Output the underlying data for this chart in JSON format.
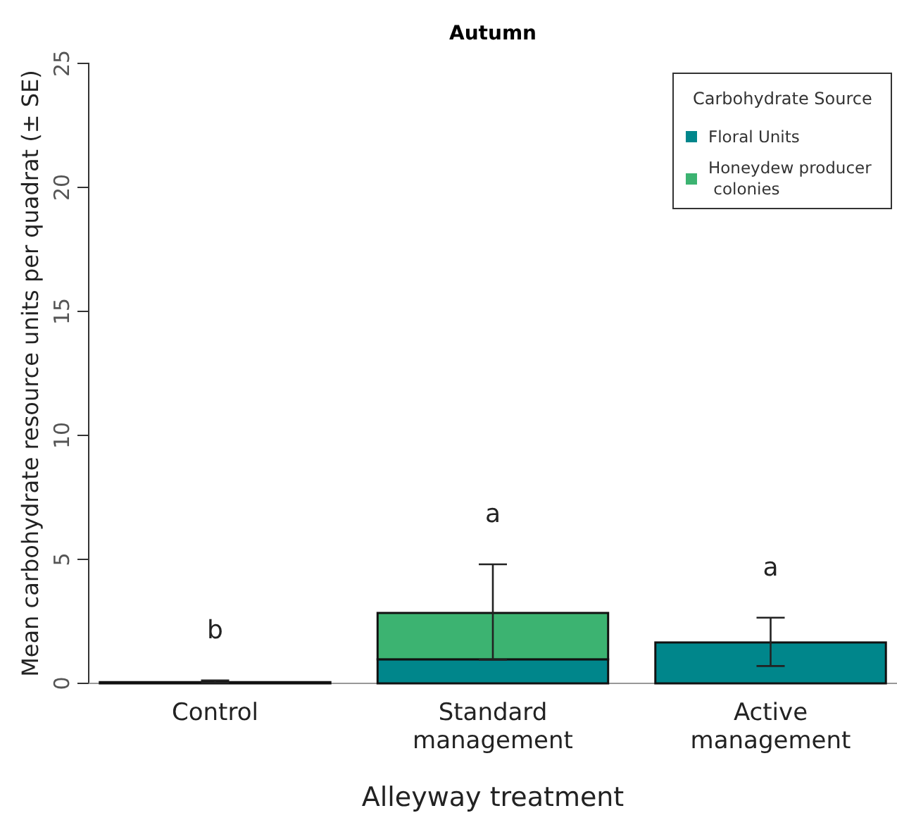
{
  "chart_data": {
    "type": "bar",
    "title": "Autumn",
    "xlabel": "Alleyway treatment",
    "ylabel": "Mean carbohydrate resource units per quadrat (± SE)",
    "legend_title": "Carbohydrate Source",
    "categories": [
      "Control",
      "Standard\nmanagement",
      "Active\nmanagement"
    ],
    "stacked": true,
    "series": [
      {
        "name": "Floral Units",
        "color": "#00868b",
        "values": [
          0.05,
          0.97,
          1.65
        ]
      },
      {
        "name": "Honeydew producer\n colonies",
        "color": "#3cb371",
        "values": [
          0,
          1.87,
          0
        ],
        "errors": [
          [
            0.03,
            0.12
          ],
          [
            0.95,
            4.8
          ],
          [
            0.7,
            2.65
          ]
        ]
      }
    ],
    "ylim": [
      0,
      25
    ],
    "yticks": [
      0,
      5,
      10,
      15,
      20,
      25
    ],
    "grid": false,
    "legend": "top right",
    "annotations": [
      "b",
      "a",
      "a"
    ]
  }
}
